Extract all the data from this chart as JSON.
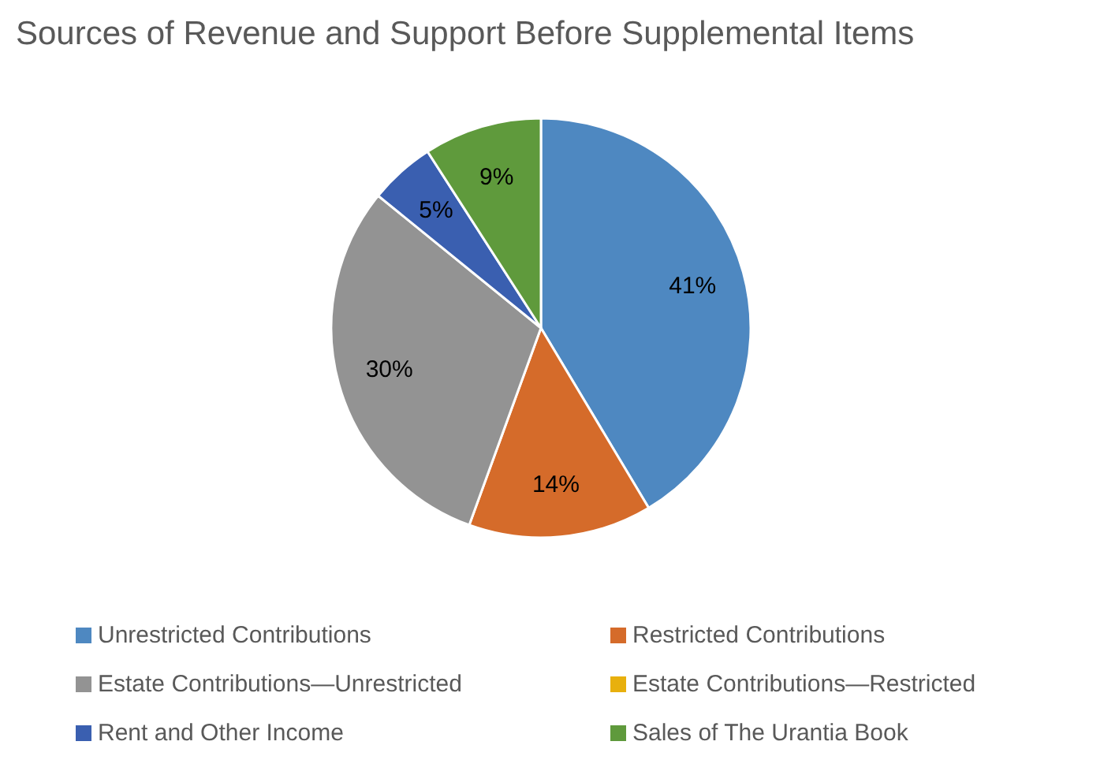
{
  "chart_data": {
    "type": "pie",
    "title": "Sources of Revenue and Support Before Supplemental Items",
    "categories": [
      "Unrestricted Contributions",
      "Restricted Contributions",
      "Estate Contributions—Unrestricted",
      "Estate Contributions—Restricted",
      "Rent and Other Income",
      "Sales of The Urantia Book"
    ],
    "values": [
      41,
      14,
      30,
      0,
      5,
      9
    ],
    "value_labels": [
      "41%",
      "14%",
      "30%",
      null,
      "5%",
      "9%"
    ],
    "colors": [
      "#4e88c1",
      "#d56b2a",
      "#939393",
      "#e8b00d",
      "#3a5fb0",
      "#5f9a3c"
    ],
    "legend": "bottom"
  }
}
